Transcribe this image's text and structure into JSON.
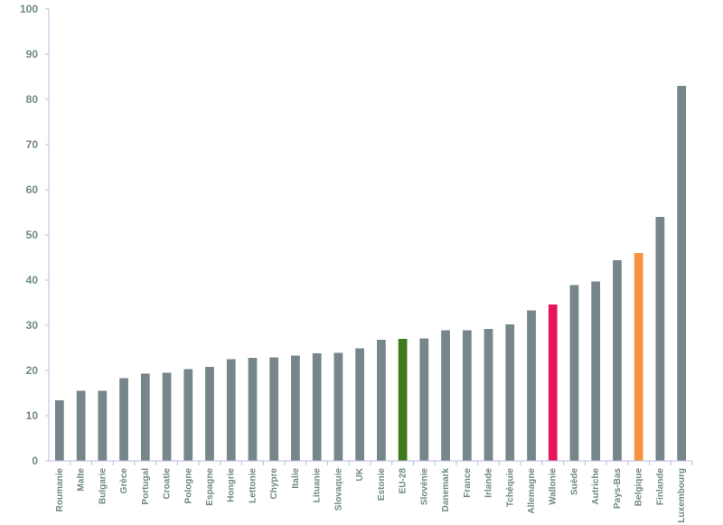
{
  "colors": {
    "default": "#76868a",
    "highlight_eu": "#3e7a1b",
    "highlight_wallonie": "#e6155a",
    "highlight_belgique": "#f7923e",
    "axis": "#b8bedd",
    "text": "#6f8a84"
  },
  "chart_data": {
    "type": "bar",
    "title": "",
    "xlabel": "",
    "ylabel": "",
    "ylim": [
      0,
      100
    ],
    "yticks": [
      "0",
      "10",
      "20",
      "30",
      "40",
      "50",
      "60",
      "70",
      "80",
      "90",
      "100"
    ],
    "grid": false,
    "categories": [
      "Roumanie",
      "Malte",
      "Bulgarie",
      "Grèce",
      "Portugal",
      "Croatie",
      "Pologne",
      "Espagne",
      "Hongrie",
      "Lettonie",
      "Chypre",
      "Italie",
      "Lituanie",
      "Slovaquie",
      "UK",
      "Estonie",
      "EU-28",
      "Slovénie",
      "Danemark",
      "France",
      "Irlande",
      "Tchéquie",
      "Allemagne",
      "Wallonie",
      "Suède",
      "Autriche",
      "Pays-Bas",
      "Belgique",
      "Finlande",
      "Luxembourg"
    ],
    "values": [
      13.4,
      15.5,
      15.5,
      18.3,
      19.3,
      19.5,
      20.3,
      20.8,
      22.5,
      22.8,
      22.9,
      23.3,
      23.8,
      23.9,
      24.9,
      26.8,
      27.0,
      27.1,
      28.9,
      28.9,
      29.2,
      30.2,
      33.3,
      34.6,
      38.9,
      39.7,
      44.4,
      46.0,
      54.0,
      83.0
    ],
    "bar_colors": [
      "default",
      "default",
      "default",
      "default",
      "default",
      "default",
      "default",
      "default",
      "default",
      "default",
      "default",
      "default",
      "default",
      "default",
      "default",
      "default",
      "highlight_eu",
      "default",
      "default",
      "default",
      "default",
      "default",
      "default",
      "highlight_wallonie",
      "default",
      "default",
      "default",
      "highlight_belgique",
      "default",
      "default"
    ]
  }
}
